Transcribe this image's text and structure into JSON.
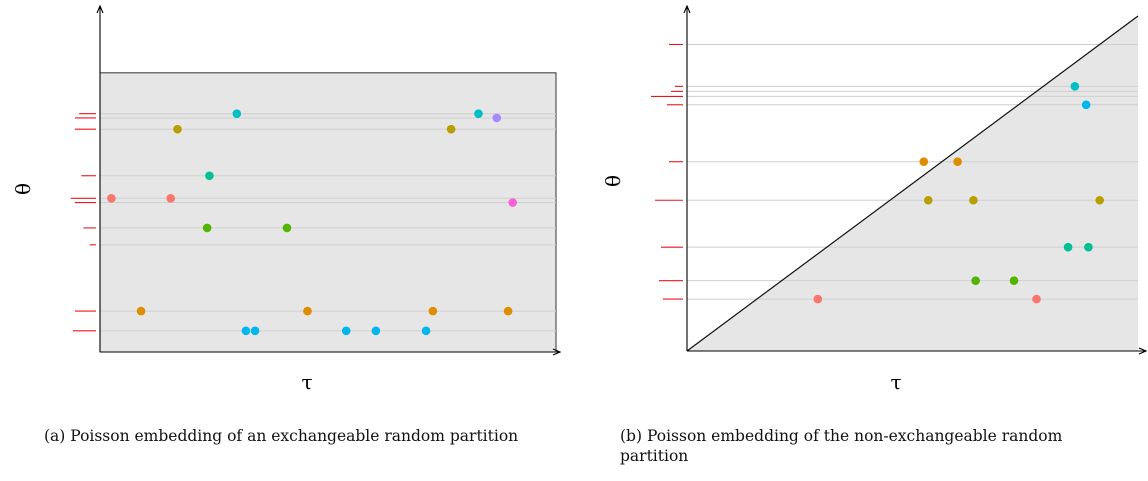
{
  "chart_data": [
    {
      "type": "scatter",
      "panel": "a",
      "caption": "(a) Poisson embedding of an exchangeable random partition",
      "xlabel": "τ",
      "ylabel": "θ",
      "grid": true,
      "xlim": [
        0,
        1
      ],
      "ylim": [
        0,
        1
      ],
      "background_region": {
        "shape": "rectangle",
        "top": 0.99
      },
      "margin_ticks": [
        {
          "y": 0.845,
          "len": 0.4
        },
        {
          "y": 0.83,
          "len": 0.5
        },
        {
          "y": 0.79,
          "len": 0.5
        },
        {
          "y": 0.625,
          "len": 0.35
        },
        {
          "y": 0.545,
          "len": 0.6
        },
        {
          "y": 0.53,
          "len": 0.5
        },
        {
          "y": 0.44,
          "len": 0.3
        },
        {
          "y": 0.38,
          "len": 0.15
        },
        {
          "y": 0.145,
          "len": 0.5
        },
        {
          "y": 0.075,
          "len": 0.55
        }
      ],
      "gridlines": [
        0.845,
        0.83,
        0.79,
        0.625,
        0.545,
        0.53,
        0.44,
        0.38,
        0.145,
        0.075
      ],
      "points": [
        {
          "x": 0.025,
          "y": 0.545,
          "color": "#F8766D"
        },
        {
          "x": 0.155,
          "y": 0.545,
          "color": "#F8766D"
        },
        {
          "x": 0.09,
          "y": 0.145,
          "color": "#DE8C00"
        },
        {
          "x": 0.455,
          "y": 0.145,
          "color": "#DE8C00"
        },
        {
          "x": 0.73,
          "y": 0.145,
          "color": "#DE8C00"
        },
        {
          "x": 0.895,
          "y": 0.145,
          "color": "#DE8C00"
        },
        {
          "x": 0.17,
          "y": 0.79,
          "color": "#B79F00"
        },
        {
          "x": 0.77,
          "y": 0.79,
          "color": "#B79F00"
        },
        {
          "x": 0.235,
          "y": 0.44,
          "color": "#53B400"
        },
        {
          "x": 0.41,
          "y": 0.44,
          "color": "#53B400"
        },
        {
          "x": 0.24,
          "y": 0.625,
          "color": "#00C094"
        },
        {
          "x": 0.3,
          "y": 0.845,
          "color": "#00BFC4"
        },
        {
          "x": 0.83,
          "y": 0.845,
          "color": "#00BFC4"
        },
        {
          "x": 0.32,
          "y": 0.075,
          "color": "#00B6EB"
        },
        {
          "x": 0.34,
          "y": 0.075,
          "color": "#00B6EB"
        },
        {
          "x": 0.54,
          "y": 0.075,
          "color": "#00B6EB"
        },
        {
          "x": 0.605,
          "y": 0.075,
          "color": "#00B6EB"
        },
        {
          "x": 0.715,
          "y": 0.075,
          "color": "#00B6EB"
        },
        {
          "x": 0.87,
          "y": 0.83,
          "color": "#A58AFF"
        },
        {
          "x": 0.905,
          "y": 0.53,
          "color": "#FB61D7"
        }
      ]
    },
    {
      "type": "scatter",
      "panel": "b",
      "caption": "(b) Poisson embedding of the non-exchangeable random partition",
      "xlabel": "τ",
      "ylabel": "θ",
      "grid": true,
      "xlim": [
        0,
        1
      ],
      "ylim": [
        0,
        1
      ],
      "background_region": {
        "shape": "triangle-below-diagonal"
      },
      "margin_ticks": [
        {
          "y": 0.915,
          "len": 0.35
        },
        {
          "y": 0.79,
          "len": 0.2
        },
        {
          "y": 0.775,
          "len": 0.3
        },
        {
          "y": 0.76,
          "len": 0.8
        },
        {
          "y": 0.735,
          "len": 0.4
        },
        {
          "y": 0.565,
          "len": 0.35
        },
        {
          "y": 0.45,
          "len": 0.7
        },
        {
          "y": 0.31,
          "len": 0.55
        },
        {
          "y": 0.21,
          "len": 0.6
        },
        {
          "y": 0.155,
          "len": 0.5
        }
      ],
      "gridlines": [
        0.915,
        0.79,
        0.775,
        0.76,
        0.735,
        0.565,
        0.45,
        0.31,
        0.21,
        0.155
      ],
      "points": [
        {
          "x": 0.29,
          "y": 0.155,
          "color": "#F8766D"
        },
        {
          "x": 0.775,
          "y": 0.155,
          "color": "#F8766D"
        },
        {
          "x": 0.525,
          "y": 0.565,
          "color": "#DE8C00"
        },
        {
          "x": 0.6,
          "y": 0.565,
          "color": "#DE8C00"
        },
        {
          "x": 0.535,
          "y": 0.45,
          "color": "#B79F00"
        },
        {
          "x": 0.635,
          "y": 0.45,
          "color": "#B79F00"
        },
        {
          "x": 0.915,
          "y": 0.45,
          "color": "#B79F00"
        },
        {
          "x": 0.64,
          "y": 0.21,
          "color": "#53B400"
        },
        {
          "x": 0.725,
          "y": 0.21,
          "color": "#53B400"
        },
        {
          "x": 0.845,
          "y": 0.31,
          "color": "#00C094"
        },
        {
          "x": 0.89,
          "y": 0.31,
          "color": "#00C094"
        },
        {
          "x": 0.86,
          "y": 0.79,
          "color": "#00BFC4"
        },
        {
          "x": 0.885,
          "y": 0.735,
          "color": "#00B6EB"
        }
      ]
    }
  ]
}
